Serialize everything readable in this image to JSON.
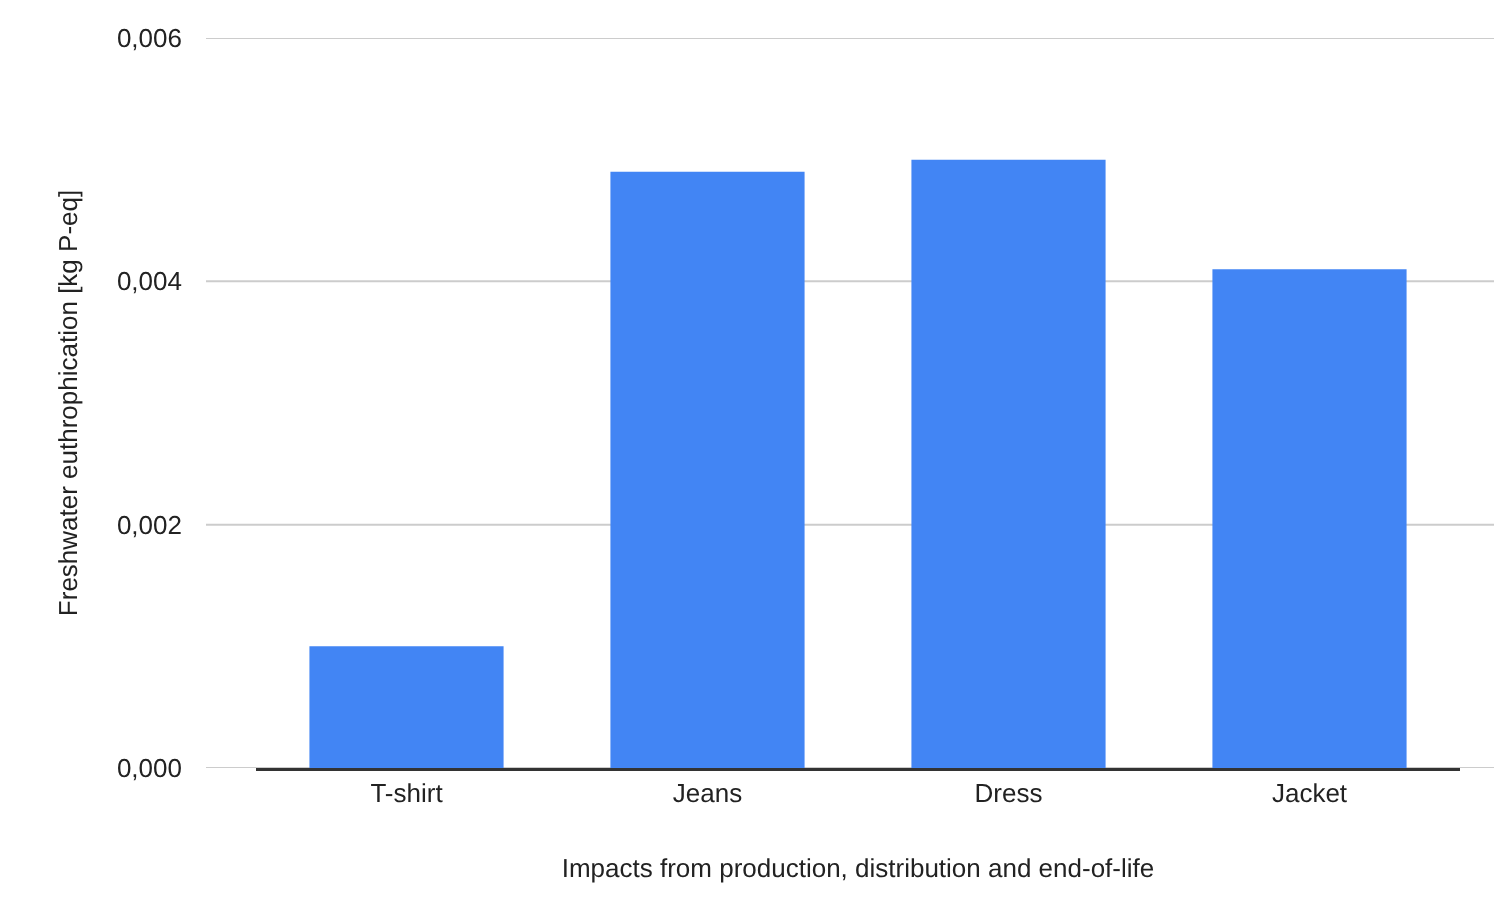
{
  "chart_data": {
    "type": "bar",
    "xlabel": "Impacts from production, distribution and end-of-life",
    "ylabel": "Freshwater euthrophication [kg P-eq]",
    "categories": [
      "T-shirt",
      "Jeans",
      "Dress",
      "Jacket"
    ],
    "values": [
      0.001,
      0.0049,
      0.005,
      0.0041
    ],
    "color": "#4285f4",
    "ylim": [
      0,
      0.006
    ],
    "yticks": [
      {
        "value": 0,
        "label": "0,000"
      },
      {
        "value": 0.002,
        "label": "0,002"
      },
      {
        "value": 0.004,
        "label": "0,004"
      },
      {
        "value": 0.006,
        "label": "0,006"
      }
    ],
    "grid": "y"
  }
}
